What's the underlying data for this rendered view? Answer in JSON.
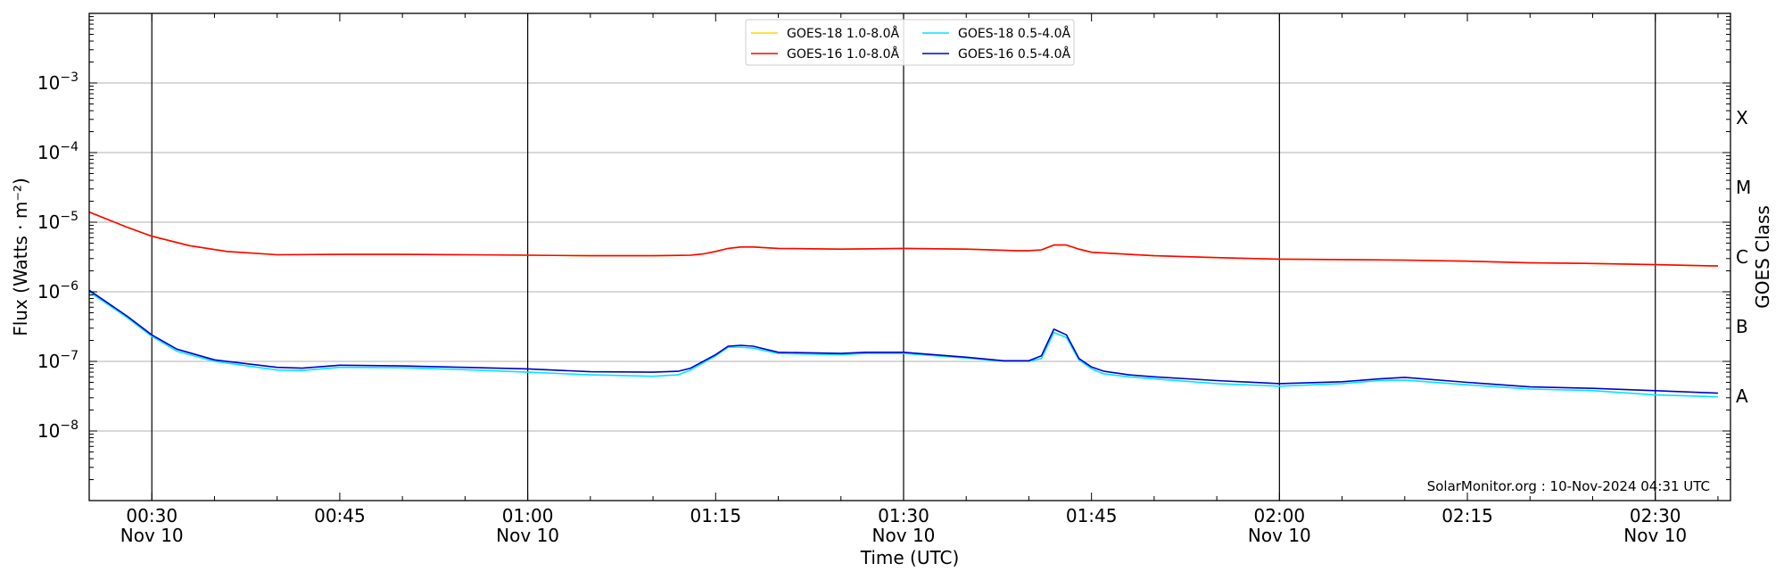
{
  "chart_data": {
    "type": "line",
    "title": "",
    "xlabel": "Time (UTC)",
    "ylabel": "Flux (Watts · m⁻²)",
    "ylabel_right": "GOES Class",
    "y_scale": "log",
    "ylim": [
      1e-09,
      0.01
    ],
    "xlim": [
      "2024-11-10 00:25",
      "2024-11-10 02:36"
    ],
    "grid": "horizontal",
    "legend_position": "top-center",
    "x_ticks": [
      {
        "t": "2024-11-10 00:30",
        "time": "00:30",
        "date": "Nov 10",
        "major": true
      },
      {
        "t": "2024-11-10 00:45",
        "time": "00:45",
        "date": "",
        "major": false
      },
      {
        "t": "2024-11-10 01:00",
        "time": "01:00",
        "date": "Nov 10",
        "major": true
      },
      {
        "t": "2024-11-10 01:15",
        "time": "01:15",
        "date": "",
        "major": false
      },
      {
        "t": "2024-11-10 01:30",
        "time": "01:30",
        "date": "Nov 10",
        "major": true
      },
      {
        "t": "2024-11-10 01:45",
        "time": "01:45",
        "date": "",
        "major": false
      },
      {
        "t": "2024-11-10 02:00",
        "time": "02:00",
        "date": "Nov 10",
        "major": true
      },
      {
        "t": "2024-11-10 02:15",
        "time": "02:15",
        "date": "",
        "major": false
      },
      {
        "t": "2024-11-10 02:30",
        "time": "02:30",
        "date": "Nov 10",
        "major": true
      }
    ],
    "y_ticks": [
      {
        "exp": -8,
        "base": "10",
        "sup": "−8"
      },
      {
        "exp": -7,
        "base": "10",
        "sup": "−7"
      },
      {
        "exp": -6,
        "base": "10",
        "sup": "−6"
      },
      {
        "exp": -5,
        "base": "10",
        "sup": "−5"
      },
      {
        "exp": -4,
        "base": "10",
        "sup": "−4"
      },
      {
        "exp": -3,
        "base": "10",
        "sup": "−3"
      }
    ],
    "goes_classes": [
      {
        "label": "A",
        "exp": -7.5
      },
      {
        "label": "B",
        "exp": -6.5
      },
      {
        "label": "C",
        "exp": -5.5
      },
      {
        "label": "M",
        "exp": -4.5
      },
      {
        "label": "X",
        "exp": -3.5
      }
    ],
    "annotation": "SolarMonitor.org : 10-Nov-2024 04:31 UTC",
    "series": [
      {
        "name": "GOES-18 1.0-8.0Å",
        "color": "#FFD700",
        "x": [
          "00:25",
          "00:28",
          "00:30",
          "00:33",
          "00:36",
          "00:40",
          "00:45",
          "00:50",
          "00:55",
          "01:00",
          "01:05",
          "01:10",
          "01:13",
          "01:14",
          "01:15",
          "01:16",
          "01:17",
          "01:18",
          "01:20",
          "01:25",
          "01:30",
          "01:35",
          "01:39",
          "01:40",
          "01:41",
          "01:42",
          "01:43",
          "01:44",
          "01:45",
          "01:50",
          "01:55",
          "02:00",
          "02:05",
          "02:10",
          "02:15",
          "02:20",
          "02:25",
          "02:30",
          "02:35"
        ],
        "y": [
          1.4e-05,
          8.5e-06,
          6.3e-06,
          4.6e-06,
          3.8e-06,
          3.4e-06,
          3.45e-06,
          3.45e-06,
          3.4e-06,
          3.35e-06,
          3.3e-06,
          3.3e-06,
          3.35e-06,
          3.5e-06,
          3.8e-06,
          4.2e-06,
          4.4e-06,
          4.4e-06,
          4.2e-06,
          4.1e-06,
          4.2e-06,
          4.1e-06,
          3.9e-06,
          3.9e-06,
          4e-06,
          4.7e-06,
          4.7e-06,
          4.1e-06,
          3.7e-06,
          3.3e-06,
          3.1e-06,
          2.95e-06,
          2.9e-06,
          2.85e-06,
          2.75e-06,
          2.6e-06,
          2.55e-06,
          2.45e-06,
          2.35e-06
        ]
      },
      {
        "name": "GOES-16 1.0-8.0Å",
        "color": "#FF0000",
        "x": [
          "00:25",
          "00:28",
          "00:30",
          "00:33",
          "00:36",
          "00:40",
          "00:45",
          "00:50",
          "00:55",
          "01:00",
          "01:05",
          "01:10",
          "01:13",
          "01:14",
          "01:15",
          "01:16",
          "01:17",
          "01:18",
          "01:20",
          "01:25",
          "01:30",
          "01:35",
          "01:39",
          "01:40",
          "01:41",
          "01:42",
          "01:43",
          "01:44",
          "01:45",
          "01:50",
          "01:55",
          "02:00",
          "02:05",
          "02:10",
          "02:15",
          "02:20",
          "02:25",
          "02:30",
          "02:35"
        ],
        "y": [
          1.4e-05,
          8.5e-06,
          6.3e-06,
          4.6e-06,
          3.8e-06,
          3.4e-06,
          3.45e-06,
          3.45e-06,
          3.4e-06,
          3.35e-06,
          3.3e-06,
          3.3e-06,
          3.35e-06,
          3.5e-06,
          3.8e-06,
          4.2e-06,
          4.4e-06,
          4.4e-06,
          4.2e-06,
          4.1e-06,
          4.2e-06,
          4.1e-06,
          3.9e-06,
          3.9e-06,
          4e-06,
          4.7e-06,
          4.7e-06,
          4.1e-06,
          3.7e-06,
          3.3e-06,
          3.1e-06,
          2.95e-06,
          2.9e-06,
          2.85e-06,
          2.75e-06,
          2.6e-06,
          2.55e-06,
          2.45e-06,
          2.35e-06
        ]
      },
      {
        "name": "GOES-18 0.5-4.0Å",
        "color": "#00E5FF",
        "x": [
          "00:25",
          "00:28",
          "00:30",
          "00:32",
          "00:35",
          "00:40",
          "00:42",
          "00:45",
          "00:50",
          "00:55",
          "01:00",
          "01:05",
          "01:10",
          "01:12",
          "01:13",
          "01:15",
          "01:16",
          "01:17",
          "01:18",
          "01:20",
          "01:25",
          "01:27",
          "01:30",
          "01:35",
          "01:38",
          "01:40",
          "01:41",
          "01:42",
          "01:43",
          "01:44",
          "01:45",
          "01:46",
          "01:48",
          "01:50",
          "01:55",
          "02:00",
          "02:05",
          "02:08",
          "02:10",
          "02:15",
          "02:20",
          "02:25",
          "02:30",
          "02:35"
        ],
        "y": [
          1e-06,
          4.3e-07,
          2.3e-07,
          1.4e-07,
          1e-07,
          7.5e-08,
          7.4e-08,
          8.2e-08,
          8.1e-08,
          7.6e-08,
          7e-08,
          6.4e-08,
          6.1e-08,
          6.4e-08,
          7.5e-08,
          1.2e-07,
          1.6e-07,
          1.6e-07,
          1.55e-07,
          1.3e-07,
          1.25e-07,
          1.3e-07,
          1.3e-07,
          1.12e-07,
          1e-07,
          1e-07,
          1.1e-07,
          2.6e-07,
          2.2e-07,
          1.05e-07,
          7.8e-08,
          6.6e-08,
          6e-08,
          5.6e-08,
          4.8e-08,
          4.4e-08,
          4.8e-08,
          5.3e-08,
          5.4e-08,
          4.6e-08,
          4e-08,
          3.8e-08,
          3.3e-08,
          3.1e-08
        ]
      },
      {
        "name": "GOES-16 0.5-4.0Å",
        "color": "#0000CC",
        "x": [
          "00:25",
          "00:28",
          "00:30",
          "00:32",
          "00:35",
          "00:40",
          "00:42",
          "00:45",
          "00:50",
          "00:55",
          "01:00",
          "01:05",
          "01:10",
          "01:12",
          "01:13",
          "01:15",
          "01:16",
          "01:17",
          "01:18",
          "01:20",
          "01:25",
          "01:27",
          "01:30",
          "01:35",
          "01:38",
          "01:40",
          "01:41",
          "01:42",
          "01:43",
          "01:44",
          "01:45",
          "01:46",
          "01:48",
          "01:50",
          "01:55",
          "02:00",
          "02:05",
          "02:08",
          "02:10",
          "02:15",
          "02:20",
          "02:25",
          "02:30",
          "02:35"
        ],
        "y": [
          1.05e-06,
          4.5e-07,
          2.4e-07,
          1.5e-07,
          1.05e-07,
          8.2e-08,
          8e-08,
          8.8e-08,
          8.6e-08,
          8.2e-08,
          7.8e-08,
          7.1e-08,
          7e-08,
          7.2e-08,
          8e-08,
          1.25e-07,
          1.65e-07,
          1.7e-07,
          1.65e-07,
          1.35e-07,
          1.3e-07,
          1.35e-07,
          1.35e-07,
          1.15e-07,
          1.02e-07,
          1.02e-07,
          1.2e-07,
          2.9e-07,
          2.4e-07,
          1.1e-07,
          8.3e-08,
          7.2e-08,
          6.4e-08,
          6e-08,
          5.3e-08,
          4.8e-08,
          5.1e-08,
          5.6e-08,
          5.9e-08,
          5e-08,
          4.3e-08,
          4.1e-08,
          3.8e-08,
          3.5e-08
        ]
      }
    ]
  }
}
